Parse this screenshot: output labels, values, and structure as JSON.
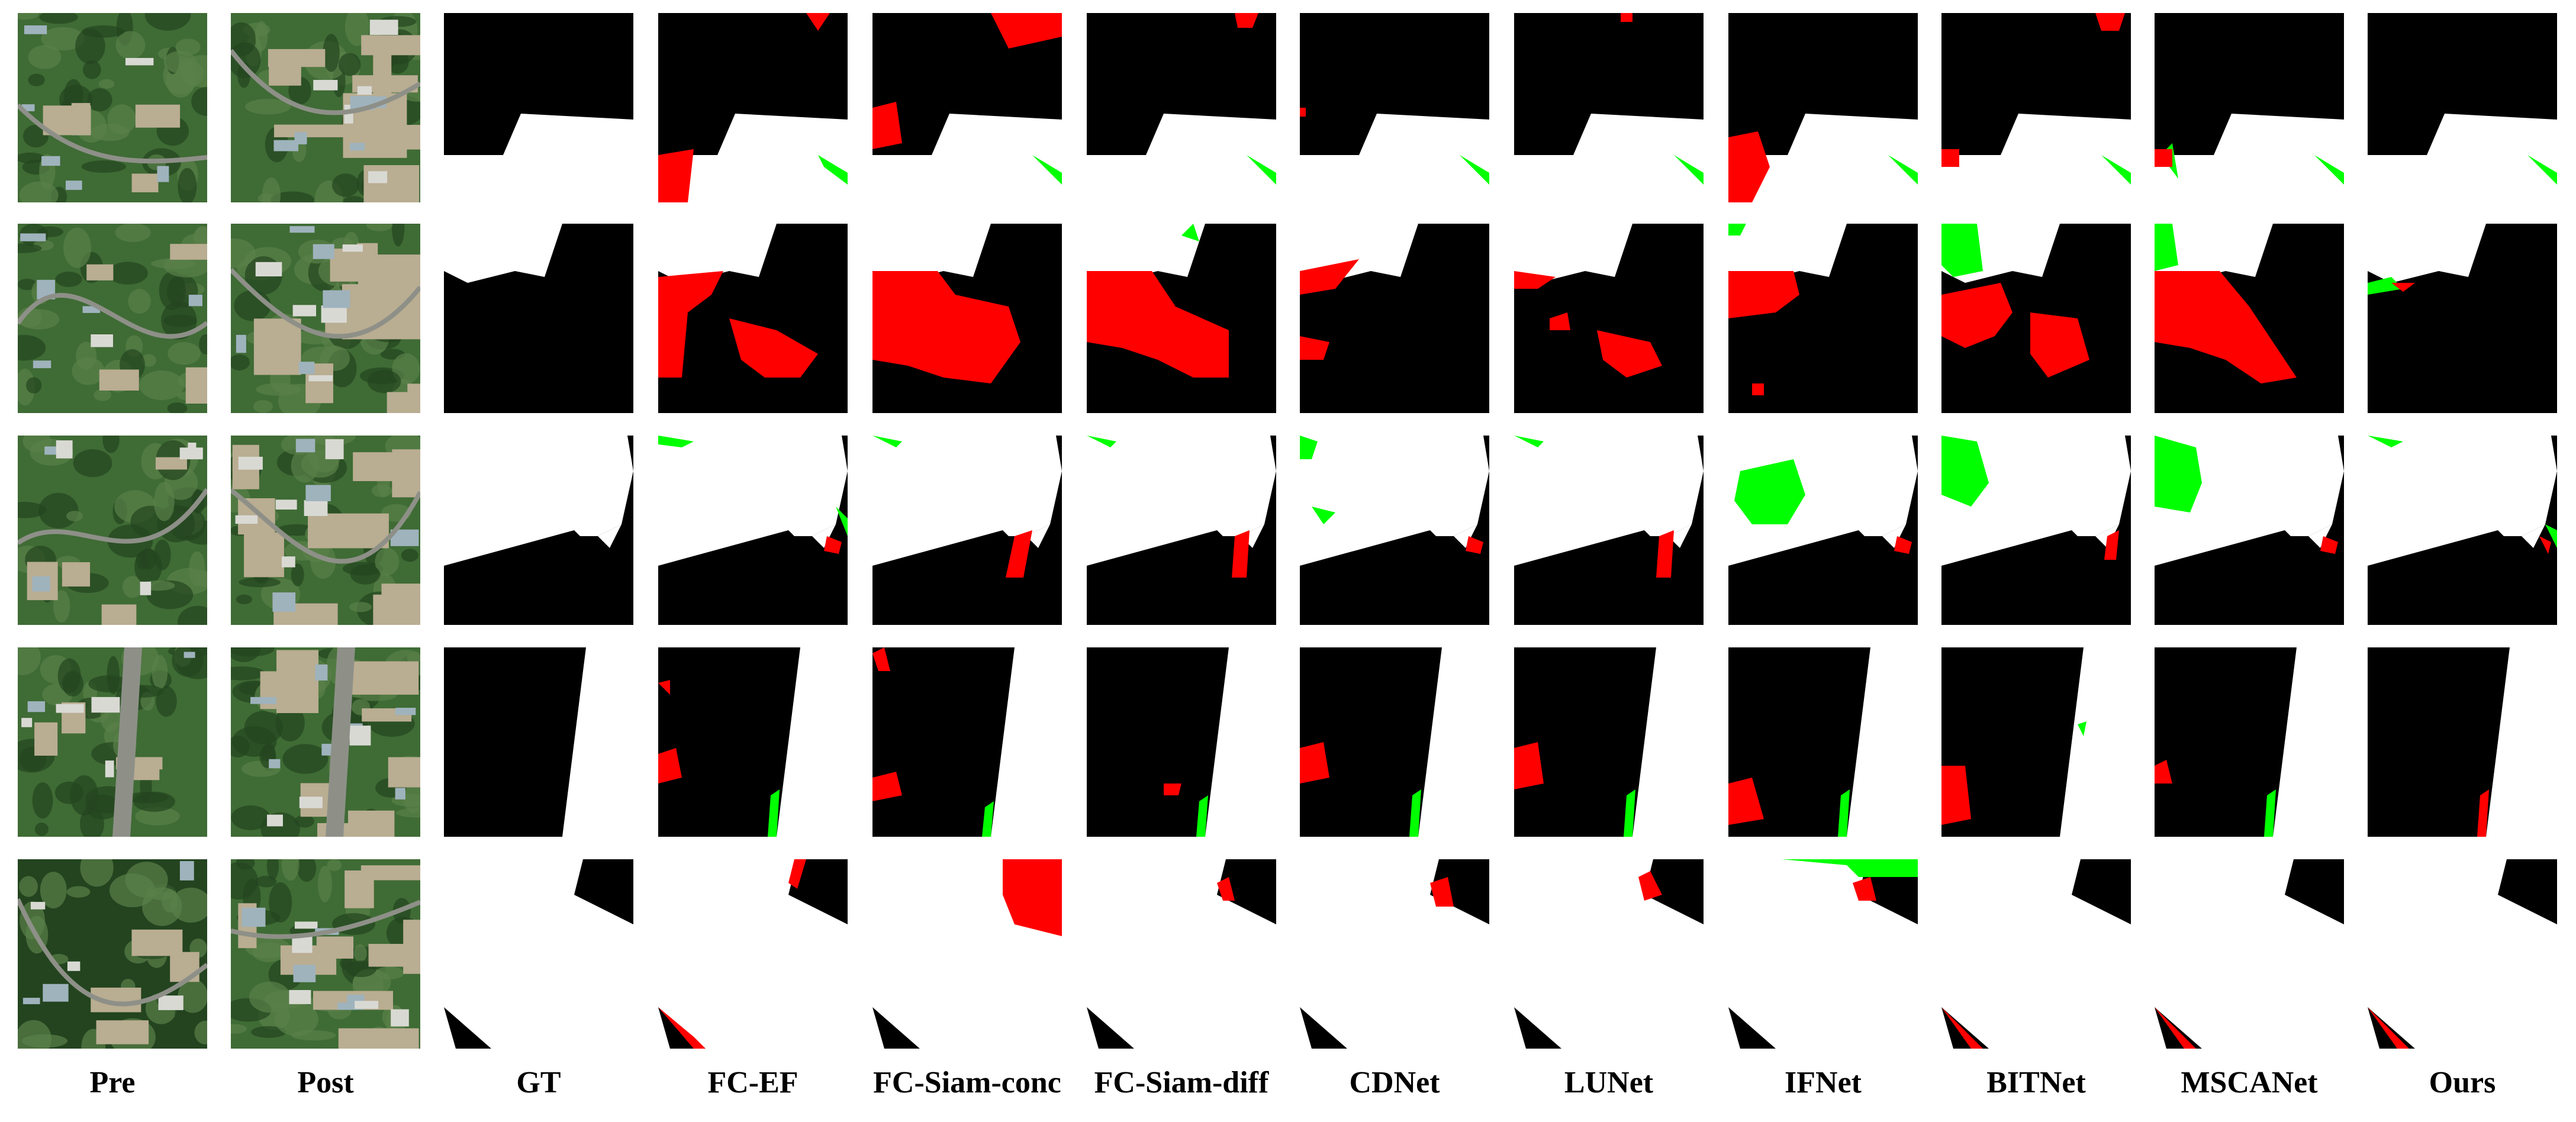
{
  "columns": [
    "Pre",
    "Post",
    "GT",
    "FC-EF",
    "FC-Siam-conc",
    "FC-Siam-diff",
    "CDNet",
    "LUNet",
    "IFNet",
    "BITNet",
    "MSCANet",
    "Ours"
  ],
  "rows": 5,
  "colors": {
    "unchanged": "#000000",
    "changed": "#ffffff",
    "false_positive": "#ff0000",
    "false_negative": "#00ff00",
    "photo_vegetation": "#3f6b35",
    "photo_dense_vegetation": "#23441f",
    "photo_soil": "#b9ad92",
    "photo_roof": "#9fb3bd",
    "photo_road": "#8e9088"
  },
  "photos": {
    "pre": [
      "vegetation-hillside-with-buildings",
      "buildings-and-vegetation",
      "vegetation-with-bare-soil",
      "buildings-and-railway",
      "dense-vegetation-with-village"
    ],
    "post": [
      "vegetation-hillside-with-buildings",
      "new-buildings-on-bare-soil",
      "new-buildings-on-bare-soil",
      "construction-and-railway",
      "construction-site"
    ]
  },
  "gt": [
    {
      "bg": "#000000",
      "white": [
        "M0,320 L0,240 L100,240 L130,170 L320,180 L320,320 Z"
      ]
    },
    {
      "bg": "#000000",
      "white": [
        "M0,0 L200,0 L170,90 L120,80 L40,100 L0,80 Z"
      ]
    },
    {
      "bg": "#000000",
      "white": [
        "M0,0 L310,0 L320,60 L300,150 L260,170 L230,170 L220,160 L0,220 Z",
        "M260,170 L300,150 L280,190 Z"
      ]
    },
    {
      "bg": "#ffffff",
      "black": [
        "M0,0 L240,0 L200,320 L0,320 Z"
      ]
    },
    {
      "bg": "#ffffff",
      "black": [
        "M235,0 L320,0 L320,110 L220,60 Z",
        "M0,250 L20,320 L80,320 Z"
      ]
    }
  ],
  "predictions": {
    "FC-EF": [
      {
        "fp": [
          "M0,240 L60,230 L50,320 L0,320 Z",
          "M250,0 L290,0 L270,30 Z"
        ],
        "fn": [
          "M270,240 L320,270 L320,290 L280,260 Z"
        ]
      },
      {
        "fp": [
          "M0,90 L110,80 L90,120 L50,150 L40,260 L0,260 Z",
          "M120,160 L200,180 L270,220 L240,260 L180,260 L140,230 Z"
        ],
        "fn": []
      },
      {
        "fp": [
          "M285,170 L310,180 L305,200 L280,195 Z"
        ],
        "fn": [
          "M0,0 L60,10 L40,20 L0,15 Z",
          "M300,120 L320,140 L320,170 Z"
        ]
      },
      {
        "fp": [
          "M0,180 L30,170 L40,220 L0,230 Z",
          "M0,60 L20,55 L20,80 Z"
        ],
        "fn": [
          "M190,250 L205,240 L200,320 L185,320 Z"
        ]
      },
      {
        "fp": [
          "M230,0 L250,0 L235,50 L220,40 Z",
          "M0,250 L60,300 L80,320 L60,320 Z"
        ],
        "fn": []
      }
    ],
    "FC-Siam-conc": [
      {
        "fp": [
          "M0,160 L40,150 L50,220 L0,230 Z",
          "M200,0 L320,0 L320,40 L230,60 Z"
        ],
        "fn": [
          "M270,240 L320,270 L320,290 Z"
        ]
      },
      {
        "fp": [
          "M0,80 L110,80 L140,120 L230,140 L250,200 L200,270 L120,260 L60,240 L0,230 Z"
        ],
        "fn": []
      },
      {
        "fp": [
          "M240,170 L270,160 L255,240 L225,240 Z"
        ],
        "fn": [
          "M0,0 L50,10 L40,20 Z"
        ]
      },
      {
        "fp": [
          "M0,220 L40,210 L50,250 L0,260 Z",
          "M0,10 L20,0 L30,40 L10,40 Z"
        ],
        "fn": [
          "M190,270 L205,260 L200,320 L185,320 Z"
        ]
      },
      {
        "fp": [
          "M220,0 L320,0 L320,130 L240,110 L220,60 Z"
        ],
        "fn": []
      }
    ],
    "FC-Siam-diff": [
      {
        "fp": [
          "M250,0 L290,0 L280,25 L255,25 Z"
        ],
        "fn": [
          "M270,240 L320,270 L320,290 Z"
        ]
      },
      {
        "fp": [
          "M0,80 L110,80 L150,140 L240,180 L240,260 L180,260 L120,230 L60,210 L0,200 Z"
        ],
        "fn": [
          "M160,20 L180,0 L190,30 Z"
        ]
      },
      {
        "fp": [
          "M250,170 L275,160 L270,240 L245,240 Z"
        ],
        "fn": [
          "M0,0 L50,10 L40,20 Z"
        ]
      },
      {
        "fp": [
          "M130,230 L160,230 L155,250 L130,250 Z"
        ],
        "fn": [
          "M190,260 L205,250 L200,320 L185,320 Z"
        ]
      },
      {
        "fp": [
          "M220,40 L240,30 L250,70 L230,70 Z"
        ],
        "fn": []
      }
    ],
    "CDNet": [
      {
        "fp": [
          "M0,160 L10,160 L10,175 L0,175 Z"
        ],
        "fn": [
          "M270,240 L320,270 L320,290 Z"
        ]
      },
      {
        "fp": [
          "M0,80 L100,60 L60,110 L0,120 Z",
          "M0,190 L50,200 L40,230 L0,230 Z"
        ],
        "fn": []
      },
      {
        "fp": [
          "M285,170 L310,180 L305,200 L280,195 Z"
        ],
        "fn": [
          "M0,0 L30,10 L20,40 L0,40 Z",
          "M20,120 L60,130 L40,150 Z"
        ]
      },
      {
        "fp": [
          "M0,170 L40,160 L50,220 L0,230 Z"
        ],
        "fn": [
          "M190,250 L205,240 L200,320 L185,320 Z"
        ]
      },
      {
        "fp": [
          "M220,40 L250,30 L260,80 L230,80 Z"
        ],
        "fn": []
      }
    ],
    "LUNet": [
      {
        "fp": [
          "M180,0 L200,0 L200,15 L180,15 Z"
        ],
        "fn": [
          "M270,240 L320,270 L320,290 Z"
        ]
      },
      {
        "fp": [
          "M0,80 L70,90 L40,110 L0,110 Z",
          "M140,180 L230,200 L250,240 L190,260 L150,230 Z",
          "M60,160 L90,150 L95,180 L60,180 Z"
        ],
        "fn": []
      },
      {
        "fp": [
          "M245,170 L270,160 L265,240 L240,240 Z"
        ],
        "fn": [
          "M0,0 L50,10 L40,20 Z"
        ]
      },
      {
        "fp": [
          "M0,170 L40,160 L50,230 L0,240 Z"
        ],
        "fn": [
          "M190,250 L205,240 L200,320 L185,320 Z"
        ]
      },
      {
        "fp": [
          "M210,30 L230,20 L250,60 L220,70 Z"
        ],
        "fn": []
      }
    ],
    "IFNet": [
      {
        "fp": [
          "M0,210 L50,200 L70,260 L40,320 L0,320 Z"
        ],
        "fn": [
          "M270,240 L320,270 L320,290 Z"
        ]
      },
      {
        "fp": [
          "M0,80 L110,80 L120,120 L80,150 L0,160 Z",
          "M40,270 L60,270 L60,290 L40,290 Z"
        ],
        "fn": [
          "M0,0 L30,0 L20,20 L0,20 Z"
        ]
      },
      {
        "fp": [
          "M285,170 L310,180 L305,200 L280,195 Z"
        ],
        "fn": [
          "M20,60 L110,40 L130,100 L100,150 L40,150 L10,110 Z"
        ]
      },
      {
        "fp": [
          "M0,230 L40,220 L60,290 L0,300 Z"
        ],
        "fn": [
          "M190,250 L205,240 L200,320 L185,320 Z"
        ]
      },
      {
        "fp": [
          "M210,40 L240,30 L250,70 L220,70 Z"
        ],
        "fn": [
          "M90,0 L320,0 L320,30 L220,30 L200,10 Z"
        ]
      }
    ],
    "BITNet": [
      {
        "fp": [
          "M0,230 L30,230 L30,260 L0,260 Z",
          "M260,0 L310,0 L300,30 L270,30 Z"
        ],
        "fn": [
          "M270,240 L320,270 L320,290 Z"
        ]
      },
      {
        "fp": [
          "M0,120 L100,100 L120,150 L90,190 L40,210 L0,190 Z",
          "M150,150 L230,160 L250,230 L180,260 L150,220 Z"
        ],
        "fn": [
          "M0,0 L60,0 L70,80 L20,90 L0,70 Z"
        ]
      },
      {
        "fp": [
          "M280,170 L300,160 L295,210 L275,210 Z"
        ],
        "fn": [
          "M0,0 L60,10 L80,80 L50,120 L0,100 Z"
        ]
      },
      {
        "fp": [
          "M0,200 L40,200 L50,290 L0,300 Z"
        ],
        "fn": [
          "M230,130 L245,125 L240,150 Z"
        ]
      },
      {
        "fp": [
          "M0,250 L50,300 L70,320 L50,320 Z"
        ],
        "fn": []
      }
    ],
    "MSCANet": [
      {
        "fp": [
          "M0,230 L30,230 L30,260 L0,260 Z"
        ],
        "fn": [
          "M270,240 L320,270 L320,290 Z",
          "M10,240 L30,220 L40,280 Z"
        ]
      },
      {
        "fp": [
          "M0,80 L110,80 L160,140 L200,200 L240,260 L180,270 L120,230 L60,210 L0,200 Z"
        ],
        "fn": [
          "M0,0 L30,0 L40,70 L0,80 Z"
        ]
      },
      {
        "fp": [
          "M285,170 L310,180 L305,200 L280,195 Z"
        ],
        "fn": [
          "M0,0 L70,20 L80,80 L60,130 L0,120 Z"
        ]
      },
      {
        "fp": [
          "M0,200 L20,190 L30,230 L0,230 Z"
        ],
        "fn": [
          "M190,250 L205,240 L200,320 L185,320 Z"
        ]
      },
      {
        "fp": [
          "M0,250 L50,300 L70,320 L50,320 Z"
        ],
        "fn": []
      }
    ],
    "Ours": [
      {
        "fp": [],
        "fn": [
          "M270,240 L320,270 L320,290 Z"
        ]
      },
      {
        "fp": [
          "M40,100 L80,100 L60,115 Z"
        ],
        "fn": [
          "M0,100 L40,90 L60,110 L0,120 Z"
        ]
      },
      {
        "fp": [
          "M290,170 L310,180 L305,200 Z"
        ],
        "fn": [
          "M0,0 L60,10 L40,20 Z",
          "M300,150 L320,160 L320,190 Z"
        ]
      },
      {
        "fp": [
          "M190,250 L205,240 L200,320 L185,320 Z"
        ],
        "fn": []
      },
      {
        "fp": [
          "M0,250 L50,300 L70,320 L50,320 Z"
        ],
        "fn": []
      }
    ]
  }
}
